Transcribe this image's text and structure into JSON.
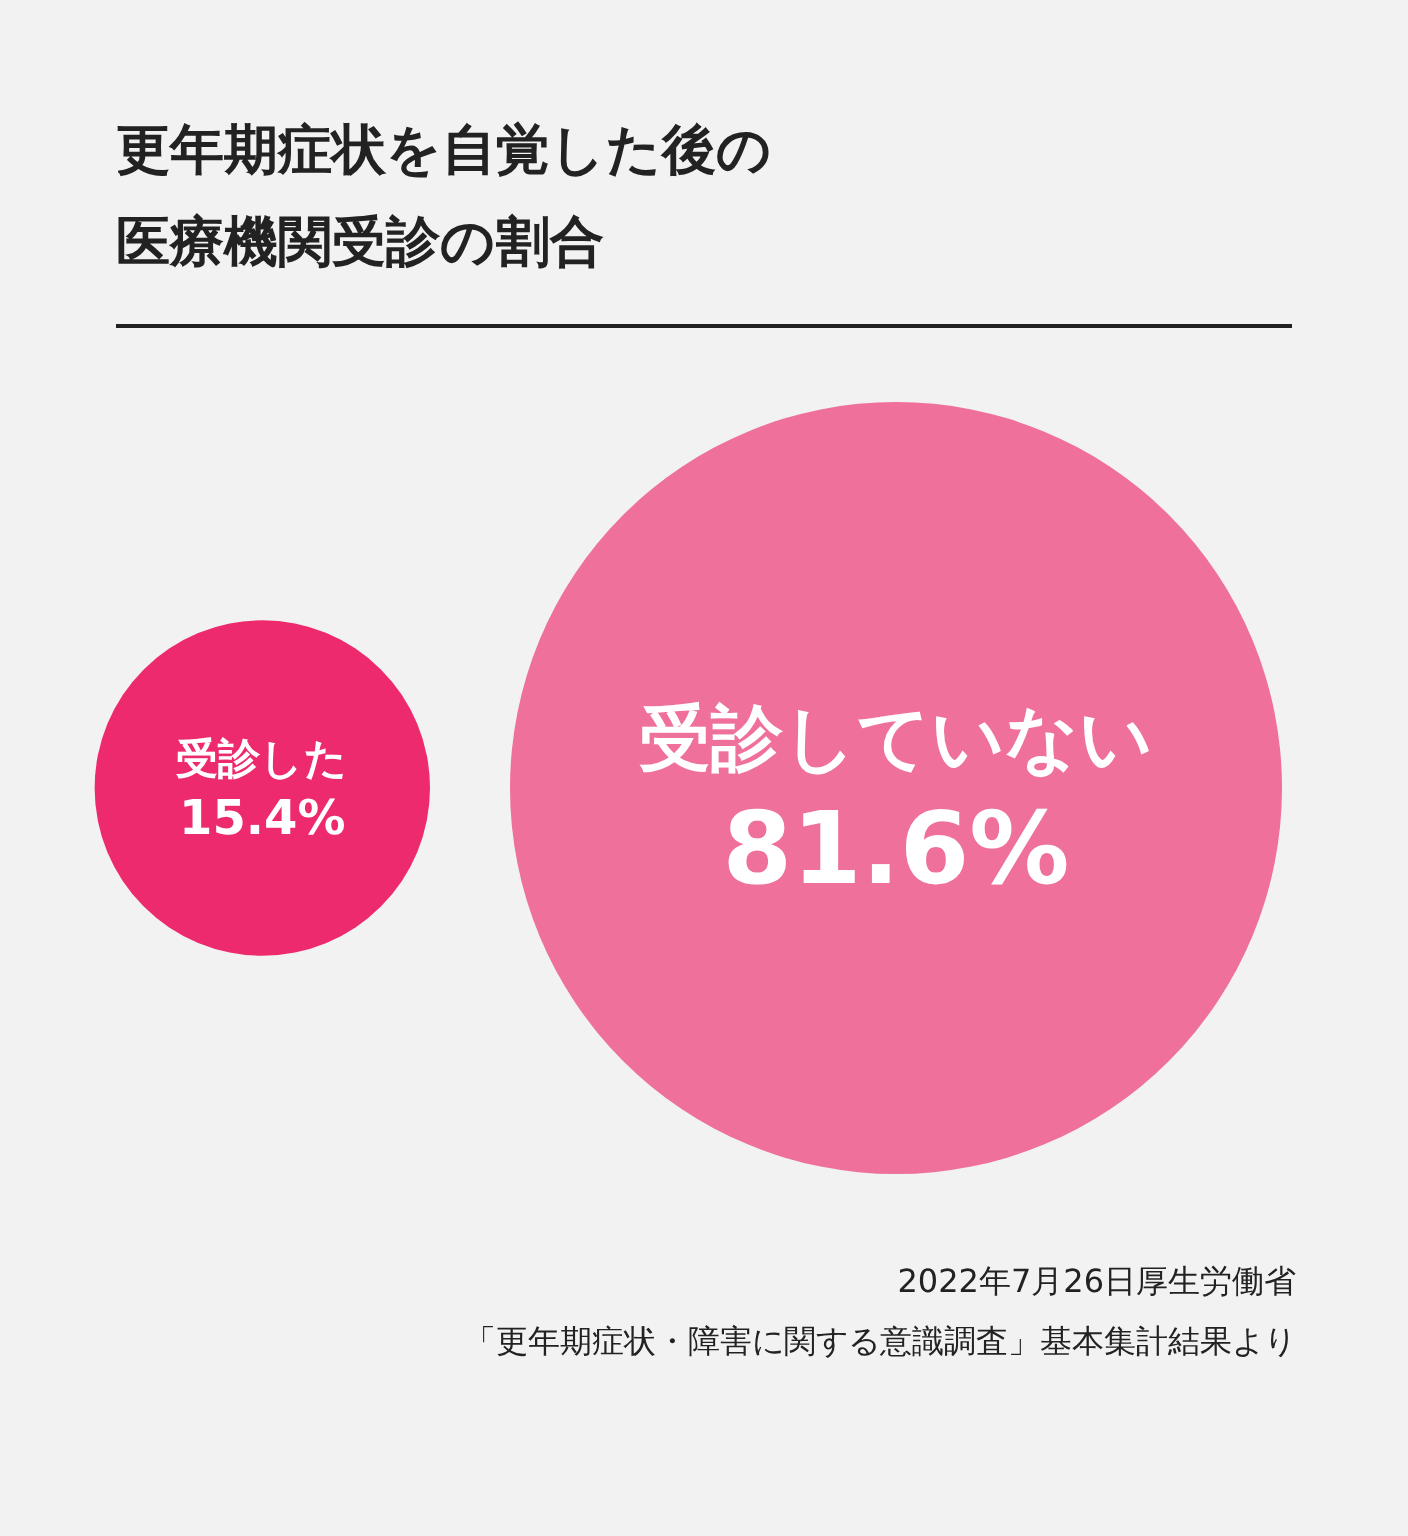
{
  "chart_data": {
    "type": "other",
    "title": "更年期症状を自覚した後の医療機関受診の割合",
    "categories": [
      "受診した",
      "受診していない"
    ],
    "values": [
      15.4,
      81.6
    ],
    "value_labels": [
      "15.4%",
      "81.6%"
    ],
    "colors": [
      "#ee2a6f",
      "#ee709b"
    ],
    "annotations": [
      "2022年7月26日厚生労働省",
      "「更年期症状・障害に関する意識調査」基本集計結果より"
    ]
  }
}
